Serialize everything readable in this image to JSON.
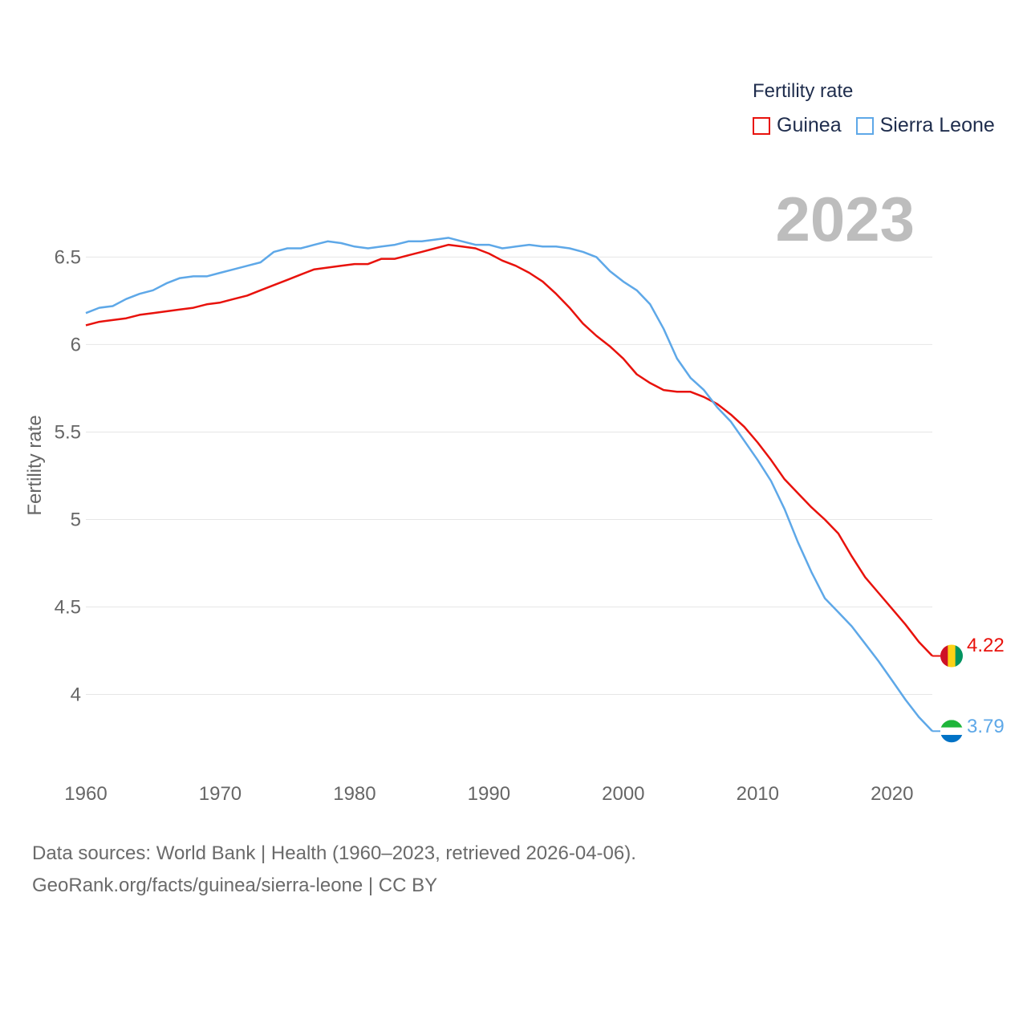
{
  "legend": {
    "title": "Fertility rate",
    "items": [
      {
        "label": "Guinea",
        "color": "#e8120c"
      },
      {
        "label": "Sierra Leone",
        "color": "#5ea8e8"
      }
    ]
  },
  "current_year": "2023",
  "end_labels": {
    "guinea": "4.22",
    "sierra_leone": "3.79"
  },
  "flags": [
    {
      "country": "Guinea",
      "icon": "guinea-flag-icon",
      "colors": [
        "#ce1126",
        "#fcd116",
        "#009460"
      ]
    },
    {
      "country": "Sierra Leone",
      "icon": "sierra-leone-flag-icon",
      "colors": [
        "#1eb53a",
        "#ffffff",
        "#0072c6"
      ]
    }
  ],
  "source": {
    "line1": "Data sources: World Bank | Health (1960–2023, retrieved 2026-04-06).",
    "line2": "GeoRank.org/facts/guinea/sierra-leone | CC BY"
  },
  "chart_data": {
    "type": "line",
    "title": "",
    "xlabel": "",
    "ylabel": "Fertility rate",
    "xlim": [
      1960,
      2023
    ],
    "ylim": [
      3.75,
      6.8
    ],
    "x_ticks": [
      1960,
      1970,
      1980,
      1990,
      2000,
      2010,
      2020
    ],
    "y_ticks": [
      4,
      4.5,
      5,
      5.5,
      6,
      6.5
    ],
    "y_tick_labels": [
      "4",
      "4.5",
      "5",
      "5.5",
      "6",
      "6.5"
    ],
    "grid": true,
    "x": [
      1960,
      1961,
      1962,
      1963,
      1964,
      1965,
      1966,
      1967,
      1968,
      1969,
      1970,
      1971,
      1972,
      1973,
      1974,
      1975,
      1976,
      1977,
      1978,
      1979,
      1980,
      1981,
      1982,
      1983,
      1984,
      1985,
      1986,
      1987,
      1988,
      1989,
      1990,
      1991,
      1992,
      1993,
      1994,
      1995,
      1996,
      1997,
      1998,
      1999,
      2000,
      2001,
      2002,
      2003,
      2004,
      2005,
      2006,
      2007,
      2008,
      2009,
      2010,
      2011,
      2012,
      2013,
      2014,
      2015,
      2016,
      2017,
      2018,
      2019,
      2020,
      2021,
      2022,
      2023
    ],
    "series": [
      {
        "name": "Guinea",
        "color": "#e8120c",
        "values": [
          6.11,
          6.13,
          6.14,
          6.15,
          6.17,
          6.18,
          6.19,
          6.2,
          6.21,
          6.23,
          6.24,
          6.26,
          6.28,
          6.31,
          6.34,
          6.37,
          6.4,
          6.43,
          6.44,
          6.45,
          6.46,
          6.46,
          6.49,
          6.49,
          6.51,
          6.53,
          6.55,
          6.57,
          6.56,
          6.55,
          6.52,
          6.48,
          6.45,
          6.41,
          6.36,
          6.29,
          6.21,
          6.12,
          6.05,
          5.99,
          5.92,
          5.83,
          5.78,
          5.74,
          5.73,
          5.73,
          5.7,
          5.66,
          5.6,
          5.53,
          5.44,
          5.34,
          5.23,
          5.15,
          5.07,
          5.0,
          4.92,
          4.79,
          4.67,
          4.58,
          4.49,
          4.4,
          4.3,
          4.22
        ]
      },
      {
        "name": "Sierra Leone",
        "color": "#5ea8e8",
        "values": [
          6.18,
          6.21,
          6.22,
          6.26,
          6.29,
          6.31,
          6.35,
          6.38,
          6.39,
          6.39,
          6.41,
          6.43,
          6.45,
          6.47,
          6.53,
          6.55,
          6.55,
          6.57,
          6.59,
          6.58,
          6.56,
          6.55,
          6.56,
          6.57,
          6.59,
          6.59,
          6.6,
          6.61,
          6.59,
          6.57,
          6.57,
          6.55,
          6.56,
          6.57,
          6.56,
          6.56,
          6.55,
          6.53,
          6.5,
          6.42,
          6.36,
          6.31,
          6.23,
          6.09,
          5.92,
          5.81,
          5.74,
          5.64,
          5.56,
          5.45,
          5.34,
          5.22,
          5.06,
          4.87,
          4.7,
          4.55,
          4.47,
          4.39,
          4.29,
          4.19,
          4.08,
          3.97,
          3.87,
          3.79
        ]
      }
    ]
  }
}
